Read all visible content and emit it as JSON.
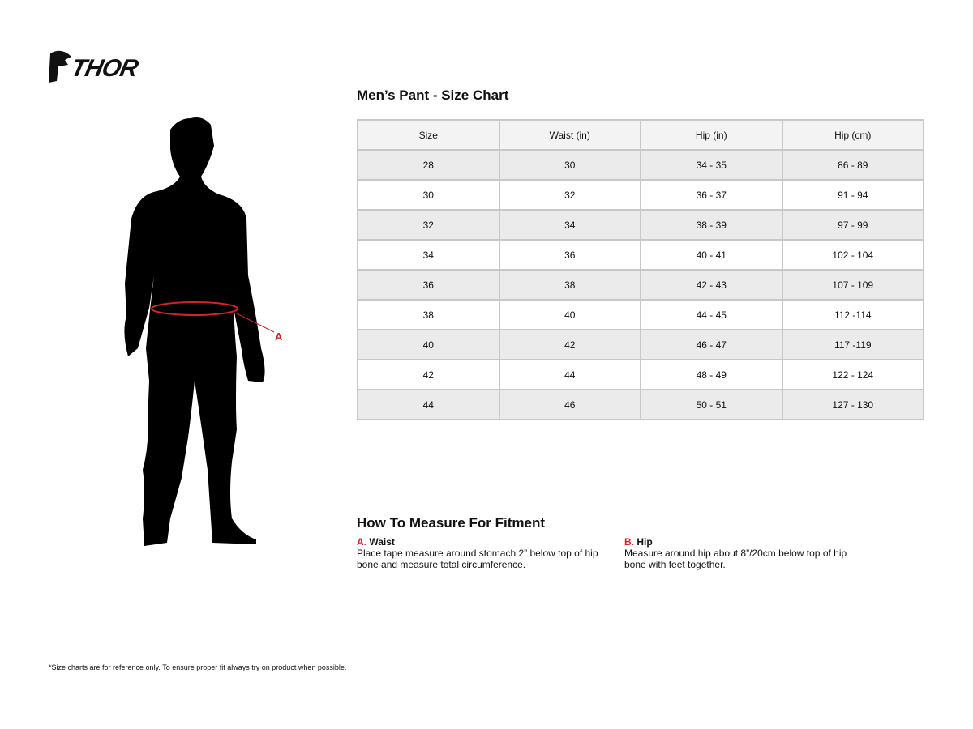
{
  "brand": {
    "logo_text": "THOR"
  },
  "chart": {
    "title": "Men’s Pant - Size Chart",
    "headers": [
      "Size",
      "Waist (in)",
      "Hip (in)",
      "Hip (cm)"
    ],
    "rows": [
      [
        "28",
        "30",
        "34 - 35",
        "86 - 89"
      ],
      [
        "30",
        "32",
        "36 - 37",
        "91 - 94"
      ],
      [
        "32",
        "34",
        "38 - 39",
        "97 - 99"
      ],
      [
        "34",
        "36",
        "40 - 41",
        "102 - 104"
      ],
      [
        "36",
        "38",
        "42 - 43",
        "107 - 109"
      ],
      [
        "38",
        "40",
        "44 - 45",
        "112 -114"
      ],
      [
        "40",
        "42",
        "46 - 47",
        "117 -119"
      ],
      [
        "42",
        "44",
        "48 - 49",
        "122 - 124"
      ],
      [
        "44",
        "46",
        "50 - 51",
        "127 - 130"
      ]
    ]
  },
  "figure": {
    "marker_label": "A",
    "accent_color": "#d2232a"
  },
  "howto": {
    "title": "How To Measure For Fitment",
    "items": [
      {
        "letter": "A.",
        "name": "Waist",
        "text": "Place tape measure around stomach 2” below top of hip bone and measure total circumference."
      },
      {
        "letter": "B.",
        "name": "Hip",
        "text": "Measure around hip about 8”/20cm below top of hip bone with feet together."
      }
    ]
  },
  "footnote": "*Size charts are for reference only. To ensure proper fit always try on product when possible."
}
